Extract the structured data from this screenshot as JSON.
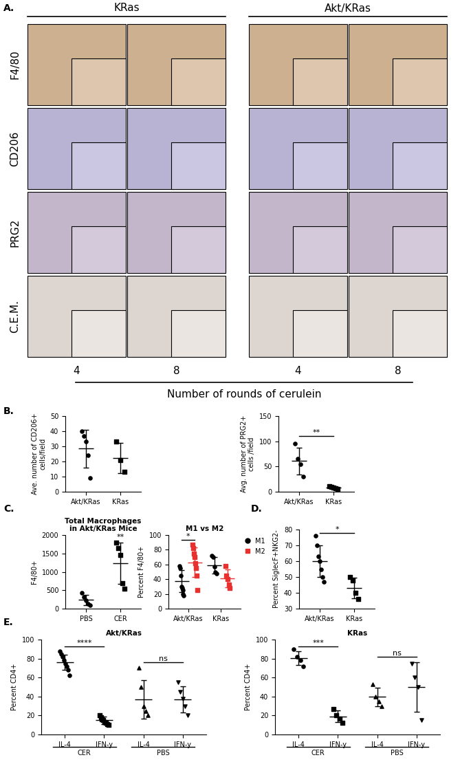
{
  "panel_labels": [
    "A.",
    "B.",
    "C.",
    "D.",
    "E."
  ],
  "panel_a": {
    "columns": [
      {
        "title": "KRas",
        "rounds": [
          4,
          8
        ]
      },
      {
        "title": "Akt/KRas",
        "rounds": [
          4,
          8
        ]
      }
    ],
    "rows": [
      "F4/80",
      "CD206",
      "PRG2",
      "C.E.M."
    ],
    "xlabel": "Number of rounds of cerulein"
  },
  "chart_data": [
    {
      "type": "scatter",
      "ylabel": "Ave. number of CD206+\ncells/field",
      "categories": [
        "Akt/KRas",
        "KRas"
      ],
      "points": [
        [
          40,
          37,
          33,
          24,
          9
        ],
        [
          33,
          21,
          13
        ]
      ],
      "mean": [
        28.6,
        22.3
      ],
      "sd": [
        12.5,
        10.1
      ],
      "ylim": [
        0,
        50
      ],
      "yticks": [
        0,
        10,
        20,
        30,
        40,
        50
      ],
      "color": "#000000"
    },
    {
      "type": "scatter",
      "ylabel": "Avg. number of PRG2+\ncells /field",
      "categories": [
        "Akt/KRas",
        "KRas"
      ],
      "points": [
        [
          95,
          65,
          55,
          30
        ],
        [
          11,
          9,
          8,
          7,
          6
        ]
      ],
      "mean": [
        61,
        8.2
      ],
      "sd": [
        26.9,
        1.9
      ],
      "ylim": [
        0,
        150
      ],
      "yticks": [
        0,
        50,
        100,
        150
      ],
      "color": "#000000",
      "annotations": [
        {
          "text": "**",
          "from": 0,
          "to": 1,
          "y": 110
        }
      ]
    },
    {
      "type": "scatter",
      "title": "Total Macrophages\nin Akt/KRas Mice",
      "ylabel": "F4/80+",
      "categories": [
        "PBS",
        "CER"
      ],
      "points": [
        [
          430,
          320,
          220,
          130,
          100
        ],
        [
          1800,
          1650,
          1450,
          700,
          550
        ]
      ],
      "mean": [
        240,
        1230
      ],
      "sd": [
        140,
        560
      ],
      "ylim": [
        0,
        2000
      ],
      "yticks": [
        0,
        500,
        1000,
        1500,
        2000
      ],
      "color": "#000000",
      "annotations": [
        {
          "text": "**",
          "from": 1,
          "to": 1,
          "y": 1850
        }
      ]
    },
    {
      "type": "scatter",
      "title": "M1 vs M2",
      "ylabel": "Percent F4/80+",
      "categories": [
        "Akt/KRas",
        "KRas"
      ],
      "series": [
        {
          "name": "M1",
          "color": "#000000",
          "marker": "circle",
          "points": [
            [
              58,
              55,
              45,
              30,
              28,
              25,
              20,
              18
            ],
            [
              72,
              70,
              57,
              50,
              48
            ]
          ],
          "mean": [
            37,
            59
          ],
          "sd": [
            15,
            11
          ]
        },
        {
          "name": "M2",
          "color": "#e8312f",
          "marker": "square",
          "points": [
            [
              87,
              82,
              75,
              70,
              62,
              55,
              45,
              25
            ],
            [
              58,
              45,
              40,
              33,
              28
            ]
          ],
          "mean": [
            63,
            41
          ],
          "sd": [
            20,
            12
          ]
        }
      ],
      "legend": "upper right",
      "ylim": [
        0,
        100
      ],
      "yticks": [
        0,
        20,
        40,
        60,
        80,
        100
      ],
      "annotations": [
        {
          "text": "*",
          "category": 0,
          "y": 93
        }
      ]
    },
    {
      "type": "scatter",
      "ylabel": "Percent SiglecF+NKG2-",
      "categories": [
        "Akt/KRas",
        "KRas"
      ],
      "points": [
        [
          76,
          70,
          63,
          60,
          55,
          50,
          47
        ],
        [
          50,
          48,
          40,
          36
        ]
      ],
      "mean": [
        60,
        43
      ],
      "sd": [
        10,
        6.6
      ],
      "ylim": [
        30,
        80
      ],
      "yticks": [
        30,
        40,
        50,
        60,
        70,
        80
      ],
      "color": "#000000",
      "annotations": [
        {
          "text": "*",
          "from": 0,
          "to": 1,
          "y": 78
        }
      ]
    },
    {
      "type": "scatter",
      "title": "Akt/KRas",
      "ylabel": "Percent CD4+",
      "categories": [
        "IL-4",
        "IFN-y",
        "IL-4",
        "IFN-y"
      ],
      "groups": [
        {
          "label": "CER",
          "from": 0,
          "to": 1
        },
        {
          "label": "PBS",
          "from": 2,
          "to": 3
        }
      ],
      "points": [
        [
          88,
          85,
          82,
          78,
          75,
          72,
          68,
          62
        ],
        [
          20,
          18,
          16,
          15,
          13,
          12,
          11,
          10
        ],
        [
          70,
          50,
          30,
          25,
          20
        ],
        [
          55,
          45,
          38,
          30,
          20
        ]
      ],
      "mean": [
        76,
        15,
        37,
        37
      ],
      "sd": [
        8,
        4,
        20,
        14
      ],
      "ylim": [
        0,
        100
      ],
      "yticks": [
        0,
        20,
        40,
        60,
        80,
        100
      ],
      "color": "#000000",
      "annotations": [
        {
          "text": "****",
          "from": 0,
          "to": 1,
          "y": 93
        },
        {
          "text": "ns",
          "from": 2,
          "to": 3,
          "y": 76
        }
      ]
    },
    {
      "type": "scatter",
      "title": "KRas",
      "ylabel": "Percent CD4+",
      "categories": [
        "IL-4",
        "IFN-y",
        "IL-4",
        "IFN-y"
      ],
      "groups": [
        {
          "label": "CER",
          "from": 0,
          "to": 1
        },
        {
          "label": "PBS",
          "from": 2,
          "to": 3
        }
      ],
      "points": [
        [
          90,
          82,
          78,
          72
        ],
        [
          27,
          20,
          17,
          12
        ],
        [
          53,
          40,
          35,
          30
        ],
        [
          75,
          60,
          50,
          15
        ]
      ],
      "mean": [
        80.5,
        19,
        39.5,
        50
      ],
      "sd": [
        7.5,
        6.2,
        10,
        26
      ],
      "ylim": [
        0,
        100
      ],
      "yticks": [
        0,
        20,
        40,
        60,
        80,
        100
      ],
      "color": "#000000",
      "annotations": [
        {
          "text": "***",
          "from": 0,
          "to": 1,
          "y": 93
        },
        {
          "text": "ns",
          "from": 2,
          "to": 3,
          "y": 82
        }
      ]
    }
  ]
}
